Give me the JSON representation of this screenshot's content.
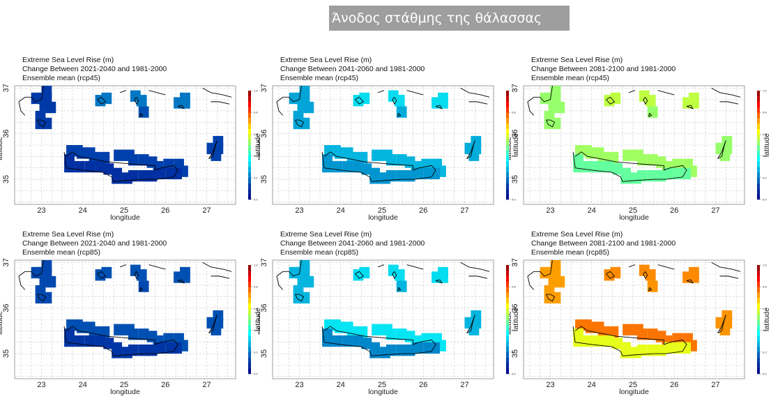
{
  "header": {
    "title": "Άνοδος στάθμης της θάλασσας"
  },
  "chart_data": [
    {
      "type": "heatmap",
      "title": [
        "Extreme Sea Level Rise (m)",
        "Change Between 2021-2040 and 1981-2000",
        "Ensemble mean (rcp45)"
      ],
      "xlabel": "longitude",
      "ylabel": "latitude",
      "xticks": [
        "23",
        "24",
        "25",
        "26",
        "27"
      ],
      "yticks": [
        "35",
        "36",
        "37"
      ],
      "xlim": [
        22.35,
        27.7
      ],
      "ylim": [
        34.45,
        37.05
      ],
      "colorbar": {
        "label": "latitude",
        "ticks": [
          "0.0",
          "0.2",
          "0.4",
          "0.6",
          "0.8",
          "1.0"
        ],
        "range": [
          0,
          1
        ]
      },
      "grid": true,
      "values": {
        "nw": 0.12,
        "cyc": 0.2,
        "islands": 0.15,
        "crete_n": 0.13,
        "crete_s": 0.1,
        "rhodes": 0.13
      }
    },
    {
      "type": "heatmap",
      "title": [
        "Extreme Sea Level Rise (m)",
        "Change Between 2041-2060 and 1981-2000",
        "Ensemble mean (rcp45)"
      ],
      "xlabel": "longitude",
      "ylabel": "latitude",
      "xticks": [
        "23",
        "24",
        "25",
        "26",
        "27"
      ],
      "yticks": [
        "35",
        "36",
        "37"
      ],
      "xlim": [
        22.35,
        27.7
      ],
      "ylim": [
        34.45,
        37.05
      ],
      "colorbar": {
        "label": "latitude",
        "ticks": [
          "0.0",
          "0.2",
          "0.4",
          "0.6",
          "0.8",
          "1.0"
        ],
        "range": [
          0,
          1
        ]
      },
      "grid": true,
      "values": {
        "nw": 0.26,
        "cyc": 0.33,
        "islands": 0.27,
        "crete_n": 0.28,
        "crete_s": 0.24,
        "rhodes": 0.27
      }
    },
    {
      "type": "heatmap",
      "title": [
        "Extreme Sea Level Rise (m)",
        "Change Between 2081-2100 and 1981-2000",
        "Ensemble mean (rcp45)"
      ],
      "xlabel": "longitude",
      "ylabel": "latitude",
      "xticks": [
        "23",
        "24",
        "25",
        "26",
        "27"
      ],
      "yticks": [
        "35",
        "36",
        "37"
      ],
      "xlim": [
        22.35,
        27.7
      ],
      "ylim": [
        34.45,
        37.05
      ],
      "colorbar": {
        "label": "latitude",
        "ticks": [
          "0.0",
          "0.2",
          "0.4",
          "0.6",
          "0.8",
          "1.0"
        ],
        "range": [
          0,
          1
        ]
      },
      "grid": true,
      "values": {
        "nw": 0.52,
        "cyc": 0.56,
        "islands": 0.52,
        "crete_n": 0.53,
        "crete_s": 0.47,
        "rhodes": 0.52
      }
    },
    {
      "type": "heatmap",
      "title": [
        "Extreme Sea Level Rise (m)",
        "Change Between 2021-2040 and 1981-2000",
        "Ensemble mean (rcp85)"
      ],
      "xlabel": "longitude",
      "ylabel": "latitude",
      "xticks": [
        "23",
        "24",
        "25",
        "26",
        "27"
      ],
      "yticks": [
        "35",
        "36",
        "37"
      ],
      "xlim": [
        22.35,
        27.7
      ],
      "ylim": [
        34.45,
        37.05
      ],
      "colorbar": {
        "label": "latitude",
        "ticks": [
          "0.0",
          "0.2",
          "0.4",
          "0.6",
          "0.8",
          "1.0"
        ],
        "range": [
          0,
          1
        ]
      },
      "grid": true,
      "values": {
        "nw": 0.14,
        "cyc": 0.15,
        "islands": 0.14,
        "crete_n": 0.15,
        "crete_s": 0.11,
        "rhodes": 0.15
      }
    },
    {
      "type": "heatmap",
      "title": [
        "Extreme Sea Level Rise (m)",
        "Change Between 2041-2060 and 1981-2000",
        "Ensemble mean (rcp85)"
      ],
      "xlabel": "longitude",
      "ylabel": "latitude",
      "xticks": [
        "23",
        "24",
        "25",
        "26",
        "27"
      ],
      "yticks": [
        "35",
        "36",
        "37"
      ],
      "xlim": [
        22.35,
        27.7
      ],
      "ylim": [
        34.45,
        37.05
      ],
      "colorbar": {
        "label": "latitude",
        "ticks": [
          "0.0",
          "0.2",
          "0.4",
          "0.6",
          "0.8",
          "1.0"
        ],
        "range": [
          0,
          1
        ]
      },
      "grid": true,
      "values": {
        "nw": 0.28,
        "cyc": 0.33,
        "islands": 0.28,
        "crete_n": 0.34,
        "crete_s": 0.22,
        "rhodes": 0.28
      }
    },
    {
      "type": "heatmap",
      "title": [
        "Extreme Sea Level Rise (m)",
        "Change Between 2081-2100 and 1981-2000",
        "Ensemble mean (rcp85)"
      ],
      "xlabel": "longitude",
      "ylabel": "latitude",
      "xticks": [
        "23",
        "24",
        "25",
        "26",
        "27"
      ],
      "yticks": [
        "35",
        "36",
        "37"
      ],
      "xlim": [
        22.35,
        27.7
      ],
      "ylim": [
        34.45,
        37.05
      ],
      "colorbar": {
        "label": "latitude",
        "ticks": [
          "0.0",
          "0.2",
          "0.4",
          "0.6",
          "0.8",
          "1.0"
        ],
        "range": [
          0,
          1
        ]
      },
      "grid": true,
      "values": {
        "nw": 0.72,
        "cyc": 0.74,
        "islands": 0.73,
        "crete_n": 0.76,
        "crete_s": 0.6,
        "rhodes": 0.73
      }
    }
  ]
}
